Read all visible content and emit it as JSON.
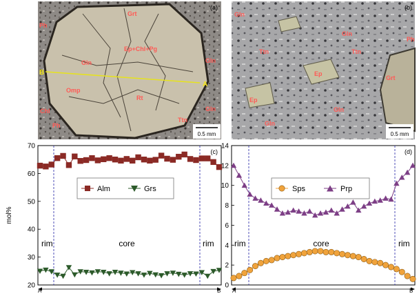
{
  "panels": {
    "a": {
      "tag": "(a)",
      "scale_bar": "0.5 mm",
      "labels": {
        "grt": "Grt",
        "ph_top": "Ph",
        "gln_left": "Gln",
        "ep_chl_pg": "Ep+Chl+Pg",
        "gln_right": "Gln",
        "omp": "Omp",
        "rt": "Rt",
        "chl": "Chl",
        "ph_bottom": "Ph",
        "gln_bottom_right": "Gln",
        "ttn": "Ttn",
        "point_b": "B",
        "point_a": "A"
      }
    },
    "b": {
      "tag": "(b)",
      "scale_bar": "0.5 mm",
      "labels": {
        "gln_tl": "Gln",
        "ttn_1": "Ttn",
        "gln_mid": "Gln",
        "ttn_2": "Ttn",
        "ph": "Ph",
        "ep_1": "Ep",
        "grt": "Grt",
        "ep_2": "Ep",
        "gln_low": "Gln",
        "gln_bottom": "Gln"
      }
    }
  },
  "chart_data": [
    {
      "type": "line",
      "panel_tag": "(c)",
      "ylabel": "mol%",
      "ylim": [
        20,
        70
      ],
      "yticks": [
        20,
        30,
        40,
        50,
        60,
        70
      ],
      "x_start_label": "A",
      "x_end_label": "B",
      "zone_labels": [
        "rim",
        "core",
        "rim"
      ],
      "legend_placement": "top-center",
      "series": [
        {
          "name": "Alm",
          "marker": "square",
          "color": "#8b2a25",
          "values": [
            62.8,
            62.5,
            63.2,
            65.5,
            66.3,
            63.0,
            66.1,
            64.5,
            64.8,
            65.5,
            64.7,
            65.1,
            65.5,
            65.0,
            64.6,
            65.2,
            64.6,
            65.8,
            65.0,
            64.6,
            64.9,
            66.4,
            65.3,
            64.9,
            66.0,
            66.8,
            65.2,
            64.8,
            65.4,
            65.4,
            64.1,
            62.3
          ]
        },
        {
          "name": "Grs",
          "marker": "triangle-down",
          "color": "#2c5a2a",
          "values": [
            25.0,
            25.4,
            24.8,
            23.6,
            23.2,
            26.3,
            23.7,
            24.8,
            24.6,
            24.4,
            24.8,
            24.6,
            24.1,
            24.6,
            24.3,
            24.0,
            24.5,
            24.1,
            23.6,
            24.2,
            23.7,
            23.4,
            24.1,
            24.3,
            23.9,
            23.6,
            24.1,
            24.0,
            24.5,
            23.2,
            24.9,
            25.3
          ]
        }
      ]
    },
    {
      "type": "line",
      "panel_tag": "(d)",
      "ylim": [
        0,
        14
      ],
      "yticks": [
        0,
        2,
        4,
        6,
        8,
        10,
        12,
        14
      ],
      "x_start_label": "A",
      "x_end_label": "B",
      "zone_labels": [
        "rim",
        "core",
        "rim"
      ],
      "legend_placement": "top-center",
      "series": [
        {
          "name": "Sps",
          "marker": "circle",
          "color": "#f0a33c",
          "values": [
            0.7,
            0.9,
            1.2,
            1.5,
            1.9,
            2.2,
            2.4,
            2.5,
            2.7,
            2.8,
            2.9,
            3.0,
            3.1,
            3.2,
            3.3,
            3.4,
            3.4,
            3.3,
            3.3,
            3.2,
            3.1,
            3.0,
            2.9,
            2.8,
            2.6,
            2.4,
            2.3,
            2.2,
            2.0,
            1.8,
            1.6,
            1.3,
            0.9,
            0.6
          ]
        },
        {
          "name": "Prp",
          "marker": "triangle-up",
          "color": "#7d3f86",
          "values": [
            12.0,
            11.0,
            10.0,
            9.1,
            8.7,
            8.5,
            8.2,
            8.0,
            7.6,
            7.2,
            7.3,
            7.5,
            7.4,
            7.2,
            7.4,
            7.0,
            7.2,
            7.3,
            7.5,
            7.2,
            7.6,
            7.9,
            8.3,
            7.5,
            7.9,
            8.2,
            8.4,
            8.5,
            8.7,
            8.6,
            10.2,
            10.8,
            11.3,
            12.0
          ]
        }
      ]
    }
  ]
}
